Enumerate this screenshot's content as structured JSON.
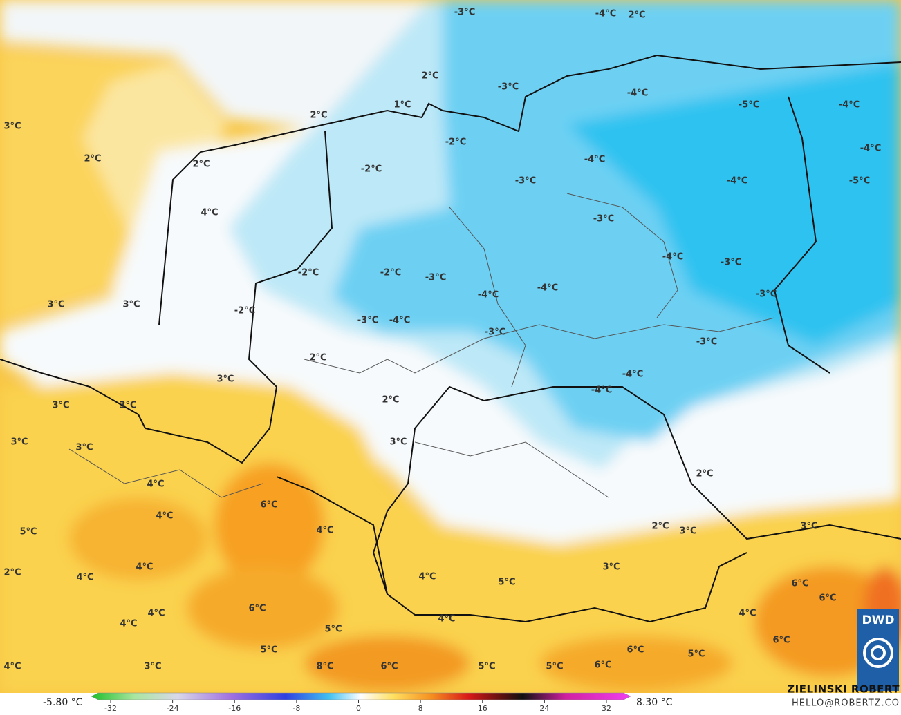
{
  "map": {
    "labels": [
      "-3°C",
      "-4°C",
      "2°C",
      "2°C",
      "-3°C",
      "-4°C",
      "-5°C",
      "-4°C",
      "1°C",
      "2°C",
      "3°C",
      "2°C",
      "-2°C",
      "-4°C",
      "-4°C",
      "2°C",
      "-2°C",
      "-3°C",
      "-4°C",
      "-5°C",
      "4°C",
      "-3°C",
      "-4°C",
      "-3°C",
      "-2°C",
      "-2°C",
      "-3°C",
      "-4°C",
      "-4°C",
      "-3°C",
      "3°C",
      "3°C",
      "-2°C",
      "-3°C",
      "-4°C",
      "-3°C",
      "-3°C",
      "2°C",
      "-4°C",
      "3°C",
      "-4°C",
      "2°C",
      "3°C",
      "3°C",
      "3°C",
      "3°C",
      "3°C",
      "2°C",
      "4°C",
      "6°C",
      "4°C",
      "2°C",
      "3°C",
      "3°C",
      "5°C",
      "4°C",
      "3°C",
      "4°C",
      "2°C",
      "4°C",
      "4°C",
      "5°C",
      "6°C",
      "6°C",
      "6°C",
      "4°C",
      "4°C",
      "4°C",
      "4°C",
      "5°C",
      "6°C",
      "5°C",
      "6°C",
      "5°C",
      "3°C",
      "4°C",
      "8°C",
      "6°C",
      "5°C",
      "5°C",
      "6°C"
    ]
  },
  "colorbar": {
    "min_label": "-5.80 °C",
    "max_label": "8.30 °C",
    "ticks": [
      -32,
      -24,
      -16,
      -8,
      0,
      8,
      16,
      24,
      32
    ]
  },
  "credits": {
    "name": "ZIELINSKI ROBERT",
    "contact": "HELLO@ROBERTZ.CO",
    "logo": "DWD"
  }
}
